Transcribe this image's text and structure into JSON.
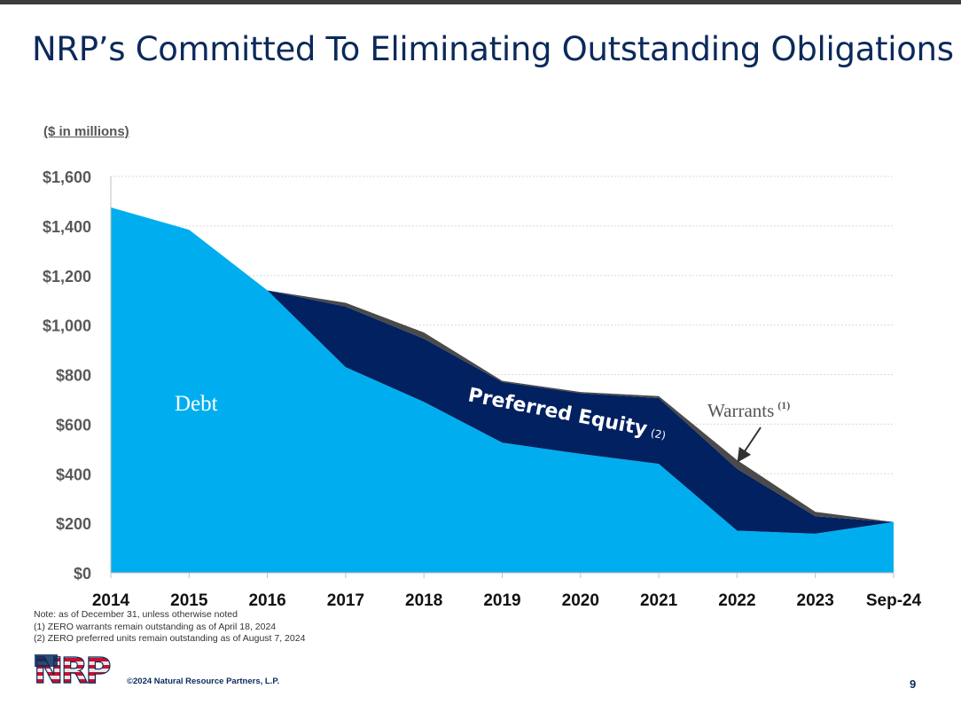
{
  "slide": {
    "title": "NRP’s Committed To Eliminating Outstanding Obligations",
    "units_label": "($ in millions)",
    "notes": [
      "Note: as of December 31, unless otherwise noted",
      "(1) ZERO warrants remain outstanding as of April 18, 2024",
      "(2) ZERO preferred units remain outstanding as of August 7, 2024"
    ],
    "logo_text": "NRP",
    "copyright": "©2024 Natural Resource Partners, L.P.",
    "page_number": "9"
  },
  "chart_data": {
    "type": "area",
    "stacked": true,
    "title": "",
    "xlabel": "",
    "ylabel": "",
    "categories": [
      "2014",
      "2015",
      "2016",
      "2017",
      "2018",
      "2019",
      "2020",
      "2021",
      "2022",
      "2023",
      "Sep-24"
    ],
    "ylim": [
      0,
      1600
    ],
    "yticks": [
      0,
      200,
      400,
      600,
      800,
      1000,
      1200,
      1400,
      1600
    ],
    "ytick_labels": [
      "$0",
      "$200",
      "$400",
      "$600",
      "$800",
      "$1,000",
      "$1,200",
      "$1,400",
      "$1,600"
    ],
    "grid": true,
    "series": [
      {
        "name": "Debt",
        "color": "#00aeef",
        "values": [
          1475,
          1385,
          1140,
          830,
          690,
          525,
          480,
          440,
          170,
          158,
          205
        ]
      },
      {
        "name": "Preferred Equity",
        "label_suffix": "(2)",
        "color": "#022160",
        "values": [
          0,
          0,
          0,
          245,
          255,
          245,
          245,
          265,
          250,
          70,
          0
        ]
      },
      {
        "name": "Warrants",
        "label_suffix": "(1)",
        "color": "#4a4a4a",
        "values": [
          0,
          0,
          0,
          15,
          25,
          5,
          5,
          8,
          35,
          18,
          0
        ]
      }
    ]
  }
}
